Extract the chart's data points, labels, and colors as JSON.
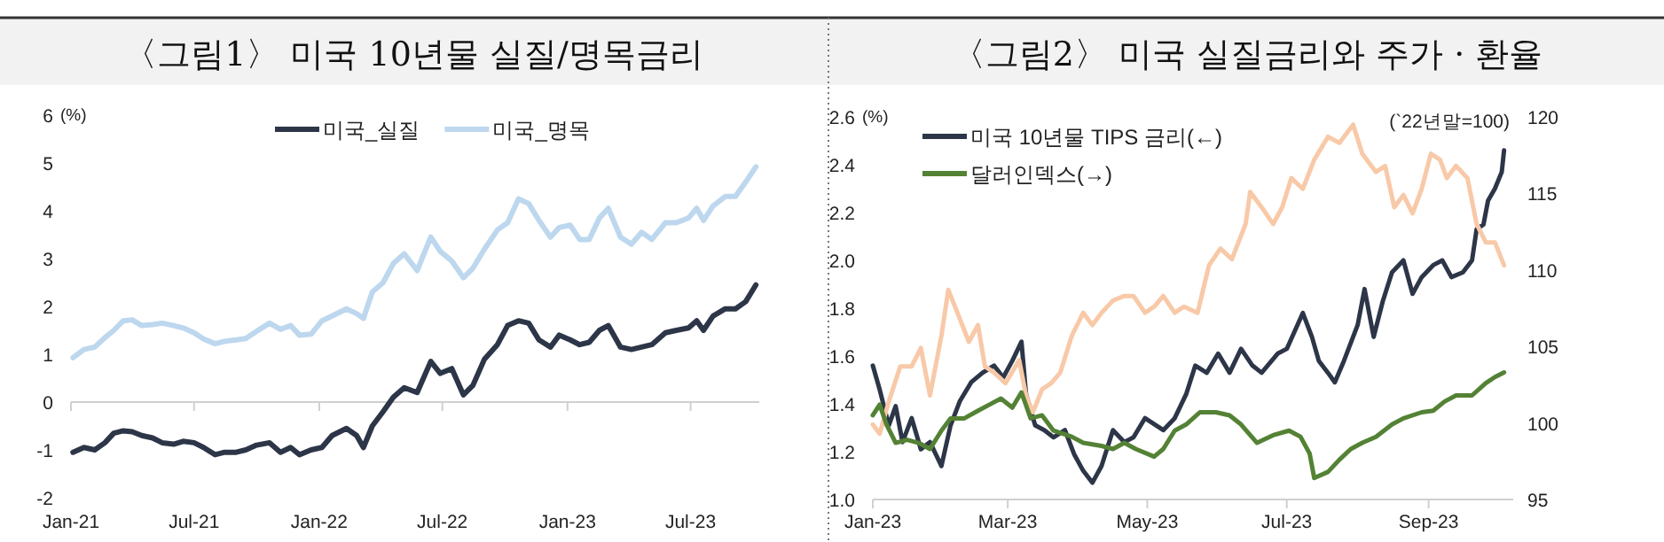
{
  "chart_data": [
    {
      "type": "line",
      "title": "〈그림1〉 미국 10년물 실질/명목금리",
      "ylabel": "(%)",
      "x": [
        "2021-01-04",
        "2021-01-20",
        "2021-02-05",
        "2021-02-20",
        "2021-03-05",
        "2021-03-19",
        "2021-04-01",
        "2021-04-15",
        "2021-05-01",
        "2021-05-15",
        "2021-06-01",
        "2021-06-15",
        "2021-07-01",
        "2021-07-15",
        "2021-08-01",
        "2021-08-15",
        "2021-09-01",
        "2021-09-15",
        "2021-10-01",
        "2021-10-20",
        "2021-11-05",
        "2021-11-20",
        "2021-12-03",
        "2021-12-20",
        "2022-01-05",
        "2022-01-20",
        "2022-02-10",
        "2022-02-25",
        "2022-03-07",
        "2022-03-20",
        "2022-04-05",
        "2022-04-20",
        "2022-05-06",
        "2022-05-25",
        "2022-06-14",
        "2022-06-28",
        "2022-07-15",
        "2022-08-01",
        "2022-08-15",
        "2022-09-01",
        "2022-09-20",
        "2022-10-05",
        "2022-10-21",
        "2022-11-05",
        "2022-11-20",
        "2022-12-07",
        "2022-12-20",
        "2023-01-05",
        "2023-01-19",
        "2023-02-02",
        "2023-02-17",
        "2023-03-02",
        "2023-03-20",
        "2023-04-05",
        "2023-04-20",
        "2023-05-05",
        "2023-05-25",
        "2023-06-10",
        "2023-06-28",
        "2023-07-10",
        "2023-07-20",
        "2023-08-03",
        "2023-08-21",
        "2023-09-05",
        "2023-09-20",
        "2023-10-05"
      ],
      "series": [
        {
          "name": "미국_실질",
          "color": "#2d3648",
          "values": [
            -1.05,
            -0.95,
            -1.0,
            -0.85,
            -0.65,
            -0.6,
            -0.62,
            -0.7,
            -0.75,
            -0.85,
            -0.88,
            -0.82,
            -0.85,
            -0.95,
            -1.1,
            -1.05,
            -1.05,
            -1.0,
            -0.9,
            -0.85,
            -1.05,
            -0.95,
            -1.1,
            -1.0,
            -0.95,
            -0.7,
            -0.55,
            -0.7,
            -0.95,
            -0.5,
            -0.2,
            0.1,
            0.3,
            0.2,
            0.85,
            0.6,
            0.7,
            0.15,
            0.35,
            0.9,
            1.2,
            1.6,
            1.7,
            1.65,
            1.3,
            1.15,
            1.4,
            1.3,
            1.2,
            1.25,
            1.5,
            1.6,
            1.15,
            1.1,
            1.15,
            1.2,
            1.45,
            1.5,
            1.55,
            1.7,
            1.5,
            1.8,
            1.95,
            1.95,
            2.1,
            2.45
          ]
        },
        {
          "name": "미국_명목",
          "color": "#bdd7ee",
          "values": [
            0.93,
            1.1,
            1.15,
            1.35,
            1.5,
            1.7,
            1.72,
            1.6,
            1.62,
            1.65,
            1.6,
            1.55,
            1.45,
            1.32,
            1.22,
            1.27,
            1.3,
            1.33,
            1.48,
            1.65,
            1.52,
            1.6,
            1.4,
            1.42,
            1.7,
            1.8,
            1.95,
            1.85,
            1.75,
            2.3,
            2.5,
            2.9,
            3.1,
            2.75,
            3.45,
            3.15,
            2.95,
            2.6,
            2.8,
            3.2,
            3.6,
            3.75,
            4.25,
            4.15,
            3.8,
            3.45,
            3.65,
            3.7,
            3.4,
            3.4,
            3.85,
            4.05,
            3.45,
            3.3,
            3.55,
            3.4,
            3.75,
            3.75,
            3.85,
            4.05,
            3.8,
            4.1,
            4.3,
            4.3,
            4.6,
            4.92
          ]
        }
      ],
      "xlim": [
        "2021-01-01",
        "2023-10-10"
      ],
      "xticks": [
        {
          "value": "2021-01-01",
          "label": "Jan-21"
        },
        {
          "value": "2021-07-01",
          "label": "Jul-21"
        },
        {
          "value": "2022-01-01",
          "label": "Jan-22"
        },
        {
          "value": "2022-07-01",
          "label": "Jul-22"
        },
        {
          "value": "2023-01-01",
          "label": "Jan-23"
        },
        {
          "value": "2023-07-01",
          "label": "Jul-23"
        }
      ],
      "ylim": [
        -2,
        6
      ],
      "yticks": [
        -2,
        -1,
        0,
        1,
        2,
        3,
        4,
        5,
        6
      ],
      "legend": "top right"
    },
    {
      "type": "line",
      "title": "〈그림2〉 미국 실질금리와 주가 · 환율",
      "ylabel": "(%)",
      "y2label": "(`22년말=100)",
      "series": [
        {
          "name": "미국 10년물 TIPS 금리(←)",
          "color": "#2d3648",
          "x": [
            "2023-01-01",
            "2023-01-04",
            "2023-01-08",
            "2023-01-11",
            "2023-01-14",
            "2023-01-18",
            "2023-01-22",
            "2023-01-26",
            "2023-01-31",
            "2023-02-04",
            "2023-02-08",
            "2023-02-13",
            "2023-02-18",
            "2023-02-23",
            "2023-02-27",
            "2023-03-03",
            "2023-03-07",
            "2023-03-09",
            "2023-03-13",
            "2023-03-17",
            "2023-03-21",
            "2023-03-26",
            "2023-03-30",
            "2023-04-03",
            "2023-04-07",
            "2023-04-11",
            "2023-04-16",
            "2023-04-21",
            "2023-04-25",
            "2023-04-30",
            "2023-05-08",
            "2023-05-13",
            "2023-05-18",
            "2023-05-22",
            "2023-05-27",
            "2023-06-01",
            "2023-06-06",
            "2023-06-11",
            "2023-06-16",
            "2023-06-20",
            "2023-06-27",
            "2023-07-01",
            "2023-07-08",
            "2023-07-12",
            "2023-07-15",
            "2023-07-19",
            "2023-07-22",
            "2023-07-26",
            "2023-08-01",
            "2023-08-04",
            "2023-08-08",
            "2023-08-12",
            "2023-08-16",
            "2023-08-21",
            "2023-08-25",
            "2023-08-29",
            "2023-09-03",
            "2023-09-07",
            "2023-09-11",
            "2023-09-16",
            "2023-09-20",
            "2023-09-22",
            "2023-09-25",
            "2023-09-27",
            "2023-09-30",
            "2023-10-03",
            "2023-10-04"
          ],
          "values": [
            1.56,
            1.46,
            1.31,
            1.39,
            1.24,
            1.34,
            1.21,
            1.24,
            1.14,
            1.31,
            1.41,
            1.49,
            1.53,
            1.56,
            1.51,
            1.58,
            1.66,
            1.44,
            1.31,
            1.29,
            1.26,
            1.29,
            1.19,
            1.12,
            1.07,
            1.14,
            1.29,
            1.24,
            1.26,
            1.34,
            1.29,
            1.34,
            1.44,
            1.56,
            1.53,
            1.61,
            1.53,
            1.63,
            1.56,
            1.53,
            1.61,
            1.63,
            1.78,
            1.68,
            1.58,
            1.53,
            1.49,
            1.58,
            1.73,
            1.88,
            1.68,
            1.83,
            1.95,
            2.0,
            1.86,
            1.93,
            1.98,
            2.0,
            1.93,
            1.95,
            2.0,
            2.13,
            2.15,
            2.25,
            2.3,
            2.37,
            2.46
          ]
        },
        {
          "color": "#f8c9a8",
          "axis": "y2",
          "x": [
            "2023-01-01",
            "2023-01-04",
            "2023-01-08",
            "2023-01-13",
            "2023-01-18",
            "2023-01-22",
            "2023-01-26",
            "2023-01-31",
            "2023-02-03",
            "2023-02-07",
            "2023-02-12",
            "2023-02-16",
            "2023-02-19",
            "2023-02-23",
            "2023-02-28",
            "2023-03-06",
            "2023-03-09",
            "2023-03-12",
            "2023-03-16",
            "2023-03-20",
            "2023-03-24",
            "2023-03-29",
            "2023-04-03",
            "2023-04-07",
            "2023-04-11",
            "2023-04-16",
            "2023-04-21",
            "2023-04-25",
            "2023-04-30",
            "2023-05-04",
            "2023-05-08",
            "2023-05-13",
            "2023-05-17",
            "2023-05-23",
            "2023-05-28",
            "2023-06-02",
            "2023-06-07",
            "2023-06-13",
            "2023-06-15",
            "2023-06-20",
            "2023-06-25",
            "2023-06-29",
            "2023-07-03",
            "2023-07-08",
            "2023-07-13",
            "2023-07-19",
            "2023-07-24",
            "2023-07-30",
            "2023-08-03",
            "2023-08-09",
            "2023-08-13",
            "2023-08-17",
            "2023-08-21",
            "2023-08-25",
            "2023-08-29",
            "2023-09-02",
            "2023-09-06",
            "2023-09-09",
            "2023-09-13",
            "2023-09-18",
            "2023-09-22",
            "2023-09-26",
            "2023-09-30",
            "2023-10-04"
          ],
          "values": [
            99.9,
            99.3,
            101.4,
            103.7,
            103.7,
            104.9,
            101.8,
            105.7,
            108.7,
            107.2,
            105.3,
            106.4,
            103.7,
            103.3,
            102.6,
            104.1,
            101.8,
            100.7,
            102.2,
            102.6,
            103.3,
            105.7,
            107.2,
            106.4,
            107.2,
            108.0,
            108.3,
            108.3,
            107.2,
            107.6,
            108.3,
            107.2,
            107.6,
            107.2,
            110.3,
            111.4,
            110.7,
            113.0,
            115.1,
            114.1,
            113.0,
            114.1,
            116.0,
            115.3,
            117.2,
            118.7,
            118.3,
            119.5,
            117.6,
            116.4,
            116.8,
            114.1,
            114.9,
            113.7,
            115.3,
            117.6,
            117.2,
            116.0,
            116.8,
            116.0,
            113.0,
            111.8,
            111.8,
            110.3
          ]
        },
        {
          "name": "달러인덱스(→)",
          "color": "#548235",
          "axis": "y2",
          "x": [
            "2023-01-01",
            "2023-01-04",
            "2023-01-07",
            "2023-01-11",
            "2023-01-16",
            "2023-01-21",
            "2023-01-26",
            "2023-01-31",
            "2023-02-04",
            "2023-02-10",
            "2023-02-16",
            "2023-02-21",
            "2023-02-26",
            "2023-03-03",
            "2023-03-07",
            "2023-03-11",
            "2023-03-16",
            "2023-03-21",
            "2023-03-29",
            "2023-04-03",
            "2023-04-11",
            "2023-04-16",
            "2023-04-21",
            "2023-04-26",
            "2023-05-04",
            "2023-05-08",
            "2023-05-13",
            "2023-05-18",
            "2023-05-24",
            "2023-05-31",
            "2023-06-06",
            "2023-06-11",
            "2023-06-18",
            "2023-06-25",
            "2023-07-02",
            "2023-07-07",
            "2023-07-11",
            "2023-07-13",
            "2023-07-19",
            "2023-07-24",
            "2023-07-29",
            "2023-08-03",
            "2023-08-09",
            "2023-08-16",
            "2023-08-21",
            "2023-08-29",
            "2023-09-03",
            "2023-09-08",
            "2023-09-13",
            "2023-09-20",
            "2023-09-26",
            "2023-09-30",
            "2023-10-04"
          ],
          "values": [
            100.5,
            101.2,
            99.9,
            98.7,
            98.9,
            98.7,
            98.3,
            99.5,
            100.3,
            100.3,
            100.8,
            101.2,
            101.6,
            101.0,
            102.0,
            100.3,
            100.5,
            99.5,
            99.1,
            98.7,
            98.5,
            98.3,
            98.7,
            98.3,
            97.8,
            98.3,
            99.5,
            99.9,
            100.7,
            100.7,
            100.5,
            99.9,
            98.7,
            99.2,
            99.5,
            99.1,
            98.0,
            96.4,
            96.8,
            97.6,
            98.3,
            98.7,
            99.1,
            99.9,
            100.3,
            100.7,
            100.8,
            101.4,
            101.8,
            101.8,
            102.6,
            103.0,
            103.3
          ]
        }
      ],
      "xlim": [
        "2023-01-01",
        "2023-10-08"
      ],
      "xticks": [
        {
          "value": "2023-01-01",
          "label": "Jan-23"
        },
        {
          "value": "2023-03-01",
          "label": "Mar-23"
        },
        {
          "value": "2023-05-01",
          "label": "May-23"
        },
        {
          "value": "2023-07-01",
          "label": "Jul-23"
        },
        {
          "value": "2023-09-01",
          "label": "Sep-23"
        }
      ],
      "ylim": [
        1.0,
        2.6
      ],
      "yticks": [
        {
          "value": 1.0,
          "label": "1.0"
        },
        1.2,
        1.4,
        1.6,
        1.8,
        {
          "value": 2.0,
          "label": "2.0"
        },
        2.2,
        2.4,
        2.6
      ],
      "y2lim": [
        95,
        120
      ],
      "y2ticks": [
        95,
        100,
        105,
        110,
        115,
        120
      ],
      "legend": "top left"
    }
  ]
}
